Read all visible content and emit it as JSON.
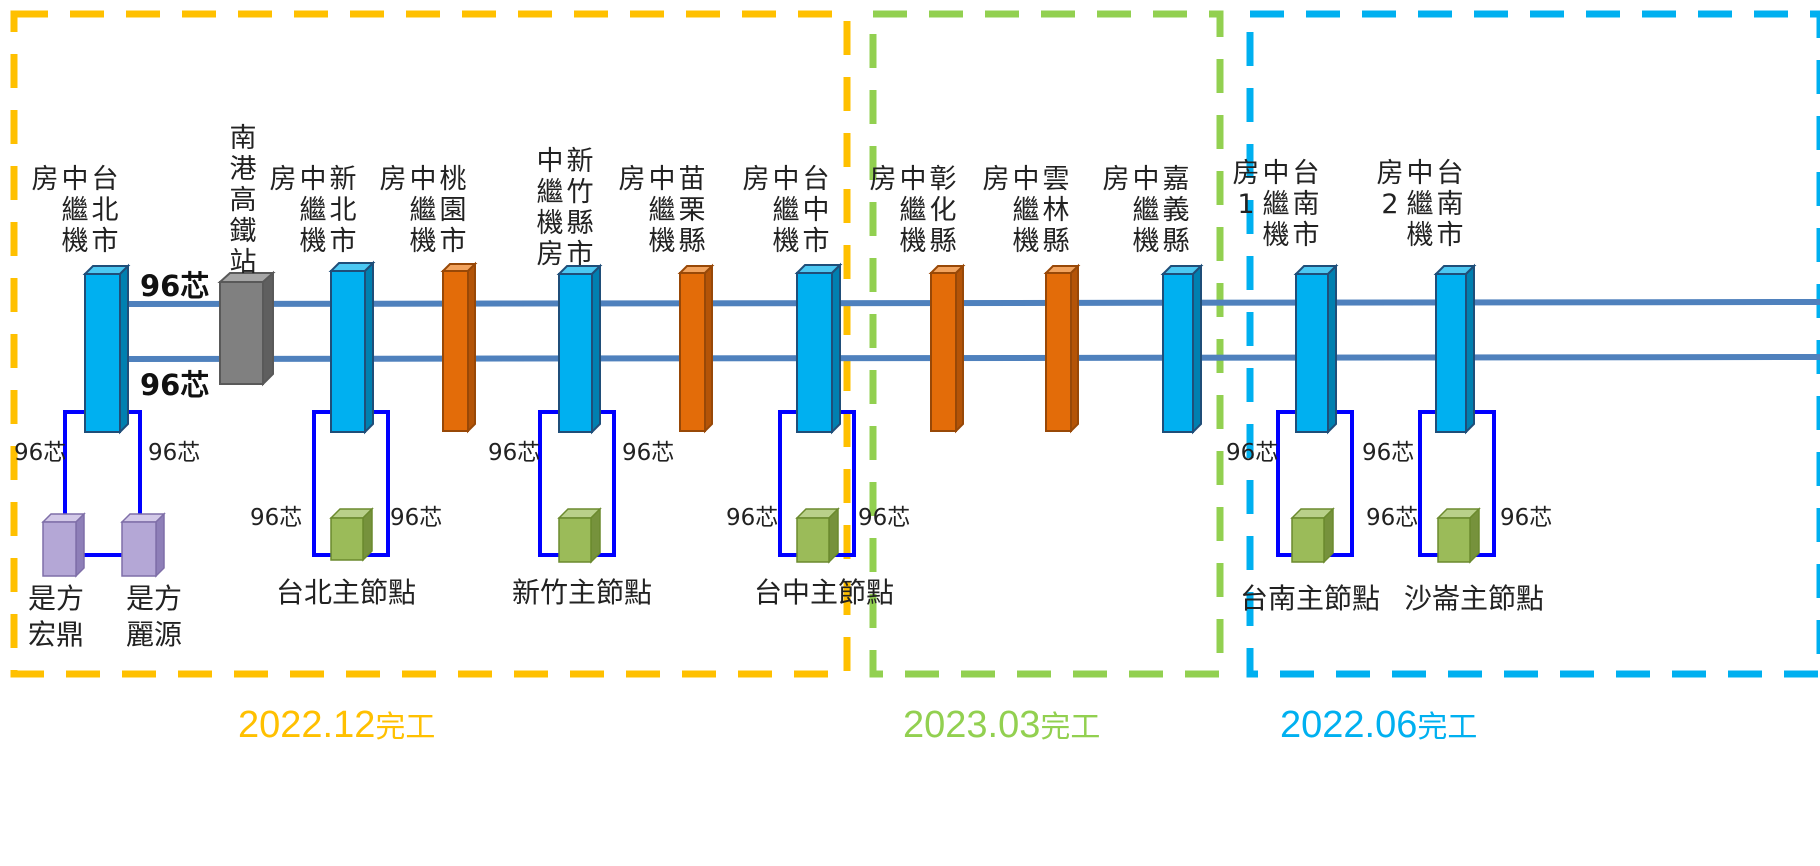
{
  "phases": [
    {
      "date": "2022.12",
      "suffix": "完工",
      "color": "#FFC000"
    },
    {
      "date": "2023.03",
      "suffix": "完工",
      "color": "#92D050"
    },
    {
      "date": "2022.06",
      "suffix": "完工",
      "color": "#00B0F0"
    }
  ],
  "stations": {
    "taipei": "台北市中繼機房",
    "nangang": "南港高鐵站",
    "newtaipei": "新北市中繼機房",
    "taoyuan": "桃園市中繼機房",
    "hsinchu": "新竹縣市中繼機房",
    "miaoli": "苗栗縣中繼機房",
    "taichung": "台中市中繼機房",
    "changhua": "彰化縣中繼機房",
    "yunlin": "雲林縣中繼機房",
    "chiayi": "嘉義縣中繼機房",
    "tainan1": "台南市中繼機房1",
    "tainan2": "台南市中繼機房2"
  },
  "nodes": {
    "hongding": "是方宏鼎",
    "liyuan": "是方麗源",
    "taipei_main": "台北主節點",
    "hsinchu_main": "新竹主節點",
    "taichung_main": "台中主節點",
    "tainan_main": "台南主節點",
    "shalun_main": "沙崙主節點"
  },
  "fiber": "96芯",
  "colors": {
    "relay_room": "#00B0F0",
    "repeater": "#E36C09",
    "hsr_station": "#808080",
    "main_node": "#9BBB59",
    "customer_node": "#B4A7D6",
    "trunk_line": "#4F81BD",
    "loop_line": "#0000FF"
  }
}
